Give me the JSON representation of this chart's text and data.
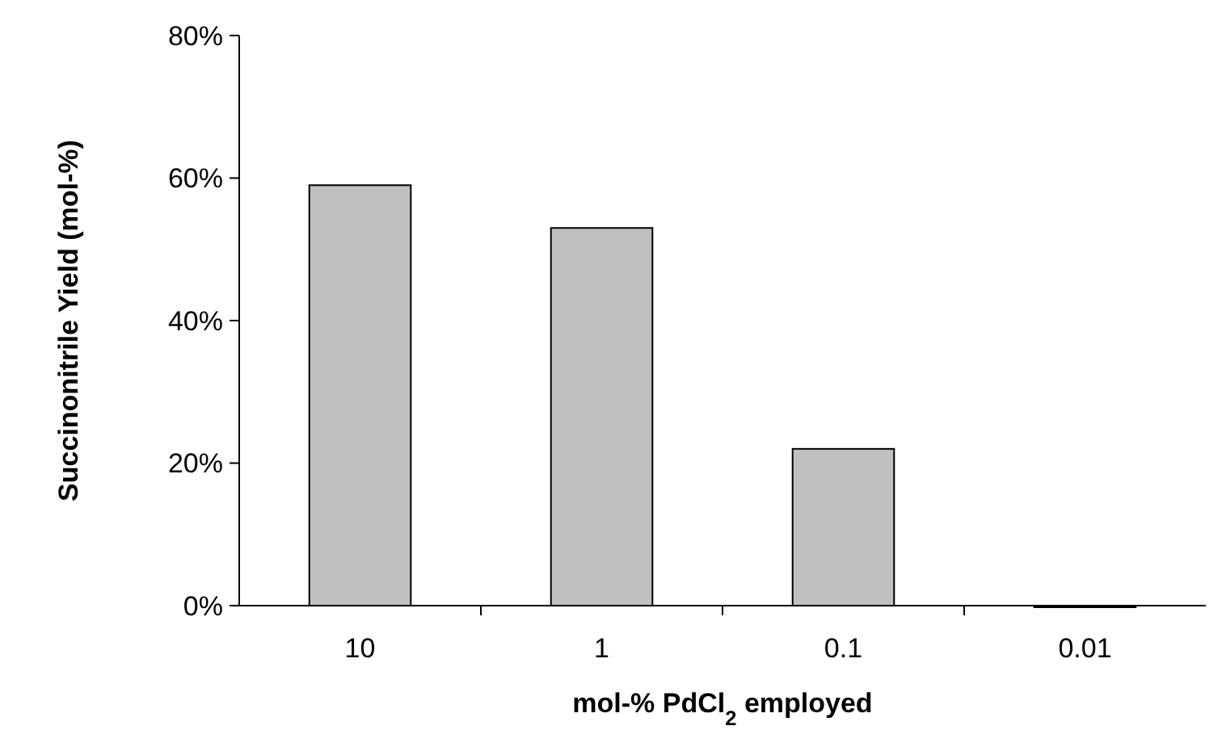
{
  "chart_data": {
    "type": "bar",
    "xlabel": "mol-% PdCl$_{2}$ employed",
    "ylabel": "Succinonitrile Yield (mol-%)",
    "categories": [
      "10",
      "1",
      "0.1",
      "0.01"
    ],
    "values": [
      59,
      53,
      22,
      0
    ],
    "color": "#c0c0c0",
    "ylim": [
      0,
      80
    ],
    "yticks": [
      {
        "value": 0,
        "label": "0%"
      },
      {
        "value": 20,
        "label": "20%"
      },
      {
        "value": 40,
        "label": "40%"
      },
      {
        "value": 60,
        "label": "60%"
      },
      {
        "value": 80,
        "label": "80%"
      }
    ],
    "grid": false
  }
}
